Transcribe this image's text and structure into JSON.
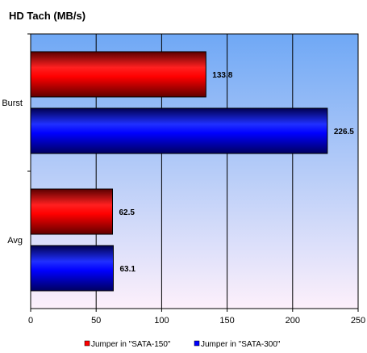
{
  "chart_data": {
    "type": "bar",
    "orientation": "horizontal",
    "title": "HD Tach (MB/s)",
    "xlabel": "",
    "ylabel": "",
    "xlim": [
      0,
      250
    ],
    "x_ticks": [
      0,
      50,
      100,
      150,
      200,
      250
    ],
    "categories": [
      "Burst",
      "Avg"
    ],
    "series": [
      {
        "name": "Jumper in \"SATA-150\"",
        "values": [
          133.8,
          62.5
        ],
        "color": "#ff0000"
      },
      {
        "name": "Jumper in \"SATA-300\"",
        "values": [
          226.5,
          63.1
        ],
        "color": "#0000ff"
      }
    ],
    "data_labels": [
      [
        "133.8",
        "62.5"
      ],
      [
        "226.5",
        "63.1"
      ]
    ],
    "grid": true,
    "legend": "bottom",
    "plot_background": [
      "#6fa8f5",
      "#fdf0fb"
    ]
  }
}
